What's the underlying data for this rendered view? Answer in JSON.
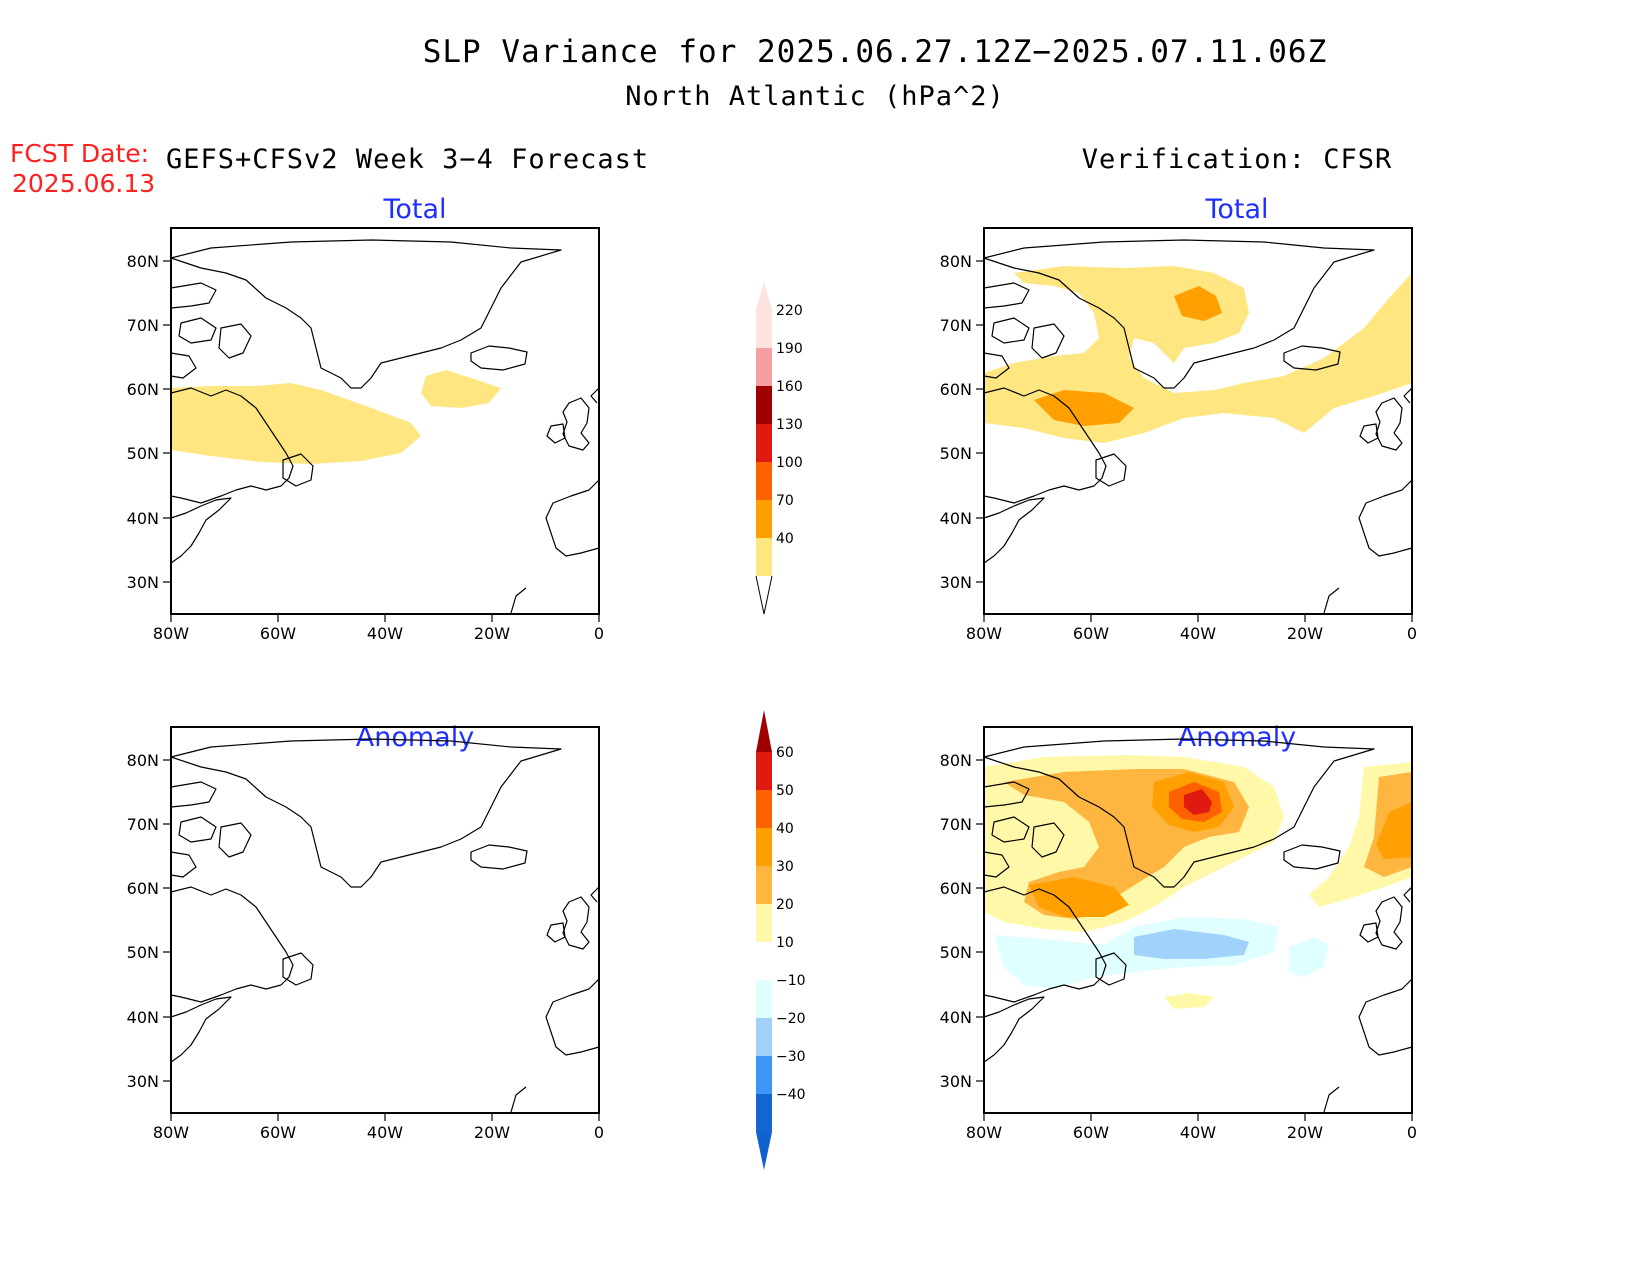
{
  "title": "SLP Variance for 2025.06.27.12Z−2025.07.11.06Z",
  "subtitle": "North Atlantic (hPa^2)",
  "fcst_date_label": "FCST Date:",
  "fcst_date_value": "2025.06.13",
  "left_column_title": "GEFS+CFSv2 Week 3−4 Forecast",
  "right_column_title": "Verification: CFSR",
  "panels": {
    "forecast_total": "Total",
    "forecast_anomaly": "Anomaly",
    "verification_total": "Total",
    "verification_anomaly": "Anomaly"
  },
  "lat_labels": [
    "80N",
    "70N",
    "60N",
    "50N",
    "40N",
    "30N"
  ],
  "lon_labels": [
    "80W",
    "60W",
    "40W",
    "20W",
    "0"
  ],
  "colorbars": {
    "total": {
      "levels": [
        "220",
        "190",
        "160",
        "130",
        "100",
        "70",
        "40"
      ],
      "colors": [
        "#fde3df",
        "#f4a0a0",
        "#a00000",
        "#e01a10",
        "#ff6000",
        "#ffa000",
        "#ffe680"
      ]
    },
    "anomaly": {
      "levels": [
        "60",
        "50",
        "40",
        "30",
        "20",
        "10",
        "−10",
        "−20",
        "−30",
        "−40"
      ],
      "colors": [
        "#a00000",
        "#e01a10",
        "#ff6000",
        "#ffa000",
        "#ffb640",
        "#fff8a8",
        "#ffffff",
        "#e0ffff",
        "#a0d2fa",
        "#3c96f5",
        "#1464d2",
        "#1060d0"
      ]
    }
  }
}
